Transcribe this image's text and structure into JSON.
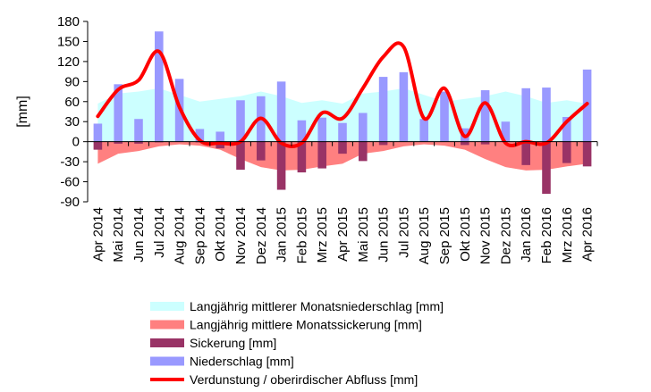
{
  "chart_data": {
    "type": "bar",
    "ylabel": "[mm]",
    "ylim": [
      -90,
      180
    ],
    "yticks": [
      -90,
      -60,
      -30,
      0,
      30,
      60,
      90,
      120,
      150,
      180
    ],
    "grid": false,
    "legend_position": "bottom",
    "categories": [
      "Apr 2014",
      "Mai 2014",
      "Jun 2014",
      "Jul 2014",
      "Aug 2014",
      "Sep 2014",
      "Okt 2014",
      "Nov 2014",
      "Dez 2014",
      "Jan 2015",
      "Feb 2015",
      "Mrz 2015",
      "Apr 2015",
      "Mai 2015",
      "Jun 2015",
      "Jul 2015",
      "Aug 2015",
      "Sep 2015",
      "Okt 2015",
      "Nov 2015",
      "Dez 2015",
      "Jan 2016",
      "Feb 2016",
      "Mrz 2016",
      "Apr 2016"
    ],
    "series": [
      {
        "name": "Langjährig mittlerer Monatsniederschlag [mm]",
        "kind": "area",
        "color": "#ccffff",
        "values": [
          57,
          72,
          75,
          80,
          70,
          60,
          64,
          68,
          75,
          68,
          58,
          62,
          57,
          72,
          75,
          80,
          70,
          60,
          64,
          68,
          75,
          68,
          58,
          62,
          57
        ]
      },
      {
        "name": "Langjährig mittlere Monatssickerung [mm]",
        "kind": "area",
        "color": "#ff8080",
        "values": [
          -33,
          -18,
          -14,
          -7,
          -4,
          -6,
          -12,
          -26,
          -38,
          -43,
          -42,
          -37,
          -33,
          -18,
          -14,
          -7,
          -4,
          -6,
          -12,
          -26,
          -38,
          -43,
          -42,
          -37,
          -33
        ]
      },
      {
        "name": "Sickerung [mm]",
        "kind": "bar",
        "color": "#993366",
        "values": [
          -12,
          -3,
          -3,
          -1,
          0,
          -1,
          -10,
          -42,
          -28,
          -72,
          -46,
          -40,
          -18,
          -29,
          -5,
          0,
          0,
          0,
          -5,
          -4,
          0,
          -35,
          -78,
          -32,
          -37
        ]
      },
      {
        "name": "Niederschlag [mm]",
        "kind": "bar",
        "color": "#9999ff",
        "values": [
          27,
          86,
          34,
          165,
          94,
          19,
          15,
          62,
          68,
          90,
          32,
          36,
          28,
          43,
          97,
          104,
          34,
          75,
          20,
          77,
          30,
          80,
          81,
          37,
          108
        ]
      },
      {
        "name": "Verdunstung / oberirdischer Abfluss [mm]",
        "kind": "line",
        "color": "#ff0000",
        "values": [
          38,
          78,
          92,
          135,
          52,
          2,
          -2,
          0,
          35,
          -2,
          -2,
          43,
          35,
          80,
          127,
          142,
          35,
          80,
          8,
          58,
          -2,
          0,
          -2,
          30,
          57
        ]
      }
    ]
  }
}
